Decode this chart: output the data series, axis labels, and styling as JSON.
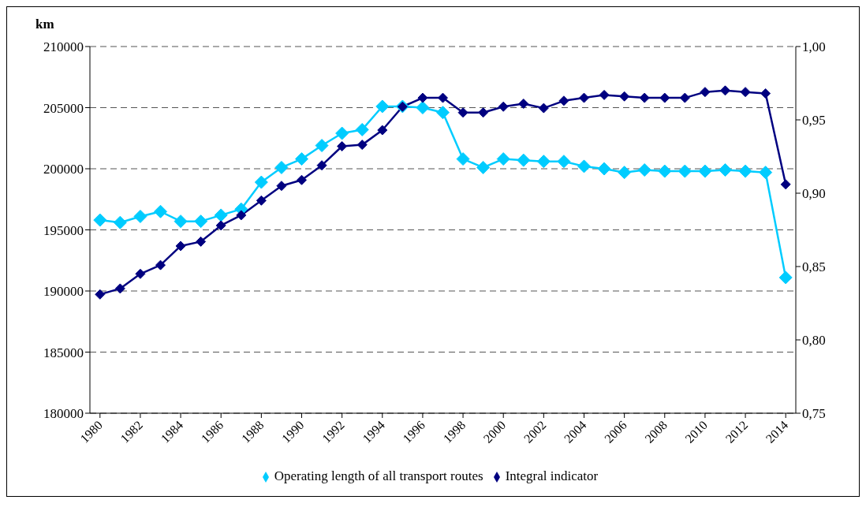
{
  "chart_data": {
    "type": "line",
    "ylabel": "km",
    "x": [
      1980,
      1981,
      1982,
      1983,
      1984,
      1985,
      1986,
      1987,
      1988,
      1989,
      1990,
      1991,
      1992,
      1993,
      1994,
      1995,
      1996,
      1997,
      1998,
      1999,
      2000,
      2001,
      2002,
      2003,
      2004,
      2005,
      2006,
      2007,
      2008,
      2009,
      2010,
      2011,
      2012,
      2013,
      2014
    ],
    "xlim": [
      1979.5,
      2014.5
    ],
    "xticks": [
      1980,
      1982,
      1984,
      1986,
      1988,
      1990,
      1992,
      1994,
      1996,
      1998,
      2000,
      2002,
      2004,
      2006,
      2008,
      2010,
      2012,
      2014
    ],
    "ylim": [
      180000,
      210000
    ],
    "yticks": [
      180000,
      185000,
      190000,
      195000,
      200000,
      205000,
      210000
    ],
    "y2lim": [
      0.75,
      1.0
    ],
    "y2ticks": [
      {
        "value": 0.75,
        "label": "0,75"
      },
      {
        "value": 0.8,
        "label": "0,80"
      },
      {
        "value": 0.85,
        "label": "0,85"
      },
      {
        "value": 0.9,
        "label": "0,90"
      },
      {
        "value": 0.95,
        "label": "0,95"
      },
      {
        "value": 1.0,
        "label": "1,00"
      }
    ],
    "series": [
      {
        "name": "Operating length of all transport routes",
        "color": "#00ccff",
        "values": [
          195800,
          195600,
          196100,
          196500,
          195700,
          195700,
          196200,
          196700,
          198900,
          200100,
          200800,
          201900,
          202900,
          203200,
          205100,
          205100,
          205000,
          204600,
          200800,
          200100,
          200800,
          200700,
          200600,
          200600,
          200200,
          200000,
          199700,
          199900,
          199800,
          199800,
          199800,
          199900,
          199800,
          199700,
          191100
        ]
      },
      {
        "name": "Integral indicator",
        "color": "#000080",
        "axis": "y2",
        "values": [
          0.831,
          0.835,
          0.845,
          0.851,
          0.864,
          0.867,
          0.878,
          0.885,
          0.895,
          0.905,
          0.909,
          0.919,
          0.932,
          0.933,
          0.943,
          0.959,
          0.965,
          0.965,
          0.955,
          0.955,
          0.959,
          0.961,
          0.958,
          0.963,
          0.965,
          0.967,
          0.966,
          0.965,
          0.965,
          0.965,
          0.969,
          0.97,
          0.969,
          0.968,
          0.906
        ]
      }
    ],
    "grid": "y",
    "legend": "bottom",
    "marker": "diamond",
    "line_style": "solid"
  }
}
